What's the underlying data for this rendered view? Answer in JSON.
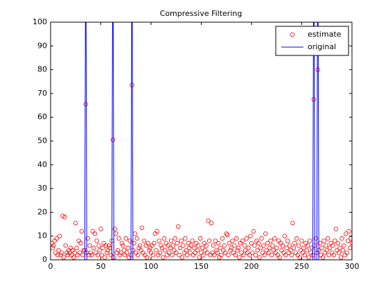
{
  "chart_data": {
    "type": "scatter-line",
    "title": "Compressive Filtering",
    "x": [
      1,
      2,
      3,
      4,
      5,
      6,
      7,
      8,
      9,
      10,
      11,
      12,
      13,
      14,
      15,
      16,
      17,
      18,
      19,
      20,
      21,
      22,
      23,
      24,
      25,
      26,
      27,
      28,
      29,
      30,
      31,
      32,
      33,
      34,
      35,
      36,
      37,
      38,
      39,
      40,
      41,
      42,
      43,
      44,
      45,
      46,
      47,
      48,
      49,
      50,
      51,
      52,
      53,
      54,
      55,
      56,
      57,
      58,
      59,
      60,
      61,
      62,
      63,
      64,
      65,
      66,
      67,
      68,
      69,
      70,
      71,
      72,
      73,
      74,
      75,
      76,
      77,
      78,
      79,
      80,
      81,
      82,
      83,
      84,
      85,
      86,
      87,
      88,
      89,
      90,
      91,
      92,
      93,
      94,
      95,
      96,
      97,
      98,
      99,
      100,
      101,
      102,
      103,
      104,
      105,
      106,
      107,
      108,
      109,
      110,
      111,
      112,
      113,
      114,
      115,
      116,
      117,
      118,
      119,
      120,
      121,
      122,
      123,
      124,
      125,
      126,
      127,
      128,
      129,
      130,
      131,
      132,
      133,
      134,
      135,
      136,
      137,
      138,
      139,
      140,
      141,
      142,
      143,
      144,
      145,
      146,
      147,
      148,
      149,
      150,
      151,
      152,
      153,
      154,
      155,
      156,
      157,
      158,
      159,
      160,
      161,
      162,
      163,
      164,
      165,
      166,
      167,
      168,
      169,
      170,
      171,
      172,
      173,
      174,
      175,
      176,
      177,
      178,
      179,
      180,
      181,
      182,
      183,
      184,
      185,
      186,
      187,
      188,
      189,
      190,
      191,
      192,
      193,
      194,
      195,
      196,
      197,
      198,
      199,
      200,
      201,
      202,
      203,
      204,
      205,
      206,
      207,
      208,
      209,
      210,
      211,
      212,
      213,
      214,
      215,
      216,
      217,
      218,
      219,
      220,
      221,
      222,
      223,
      224,
      225,
      226,
      227,
      228,
      229,
      230,
      231,
      232,
      233,
      234,
      235,
      236,
      237,
      238,
      239,
      240,
      241,
      242,
      243,
      244,
      245,
      246,
      247,
      248,
      249,
      250,
      251,
      252,
      253,
      254,
      255,
      256,
      257,
      258,
      259,
      260,
      261,
      262,
      263,
      264,
      265,
      266,
      267,
      268,
      269,
      270,
      271,
      272,
      273,
      274,
      275,
      276,
      277,
      278,
      279,
      280,
      281,
      282,
      283,
      284,
      285,
      286,
      287,
      288,
      289,
      290,
      291,
      292,
      293,
      294,
      295,
      296,
      297,
      298,
      299,
      300
    ],
    "series": [
      {
        "name": "estimate",
        "color": "#ff0000",
        "marker": "circle",
        "values": [
          7,
          5,
          6,
          8,
          3,
          9,
          2,
          4,
          10,
          2,
          3,
          18.5,
          1,
          18,
          6,
          3,
          2,
          4,
          3,
          5,
          2,
          4,
          1,
          3,
          15.5,
          5,
          2,
          8,
          3,
          7,
          12,
          2,
          4,
          4,
          65.5,
          3,
          9,
          2,
          6,
          3,
          2,
          12,
          5,
          11,
          3,
          8,
          2,
          6,
          4,
          13,
          2,
          5,
          7,
          1,
          6,
          3,
          4,
          6,
          5,
          2,
          8,
          50.5,
          1,
          13,
          11,
          3,
          4,
          9,
          2,
          3,
          7,
          6,
          4,
          2,
          9,
          3,
          5,
          1,
          8,
          2,
          73.5,
          4,
          7,
          11,
          3,
          9,
          2,
          5,
          6,
          4,
          13.5,
          3,
          8,
          2,
          6,
          1,
          7,
          4,
          5,
          3,
          6,
          2,
          7,
          11,
          4,
          12,
          2,
          8,
          3,
          6,
          5,
          1,
          9,
          4,
          7,
          2,
          6,
          3,
          5,
          8,
          2,
          6,
          4,
          9,
          3,
          7,
          14,
          2,
          5,
          8,
          1,
          6,
          3,
          9,
          4,
          2,
          7,
          5,
          3,
          6,
          8,
          2,
          5,
          3,
          7,
          4,
          6,
          1,
          9,
          3,
          5,
          2,
          7,
          4,
          6,
          3,
          16.5,
          8,
          2,
          15.5,
          3,
          6,
          2,
          8,
          4,
          3,
          7,
          1,
          5,
          2,
          9,
          4,
          6,
          3,
          11,
          10.5,
          2,
          7,
          4,
          5,
          8,
          3,
          6,
          2,
          9,
          4,
          5,
          1,
          7,
          3,
          8,
          2,
          6,
          4,
          9,
          3,
          5,
          2,
          10,
          7,
          3,
          12,
          6,
          2,
          8,
          4,
          7,
          1,
          5,
          9,
          3,
          6,
          2,
          11,
          4,
          7,
          3,
          5,
          8,
          2,
          6,
          4,
          9,
          3,
          5,
          2,
          8,
          1,
          7,
          4,
          6,
          3,
          10,
          2,
          5,
          8,
          3,
          6,
          4,
          2,
          15.5,
          5,
          7,
          3,
          9,
          2,
          6,
          1,
          4,
          8,
          3,
          5,
          2,
          7,
          4,
          6,
          1,
          8,
          3,
          5,
          2,
          67.5,
          6,
          9,
          3,
          80,
          4,
          7,
          2,
          5,
          1,
          8,
          3,
          6,
          4,
          9,
          2,
          5,
          7,
          3,
          6,
          2,
          8,
          13,
          4,
          7,
          3,
          5,
          1,
          9,
          4,
          6,
          2,
          11,
          3,
          8,
          12,
          5,
          9,
          7
        ]
      },
      {
        "name": "original",
        "color": "#0000ff",
        "marker": "line",
        "values": [
          0,
          0,
          0,
          0,
          0,
          0,
          0,
          0,
          0,
          0,
          0,
          0,
          0,
          0,
          0,
          0,
          0,
          0,
          0,
          0,
          0,
          0,
          0,
          0,
          0,
          0,
          0,
          0,
          0,
          0,
          0,
          0,
          0,
          0,
          150,
          0,
          0,
          0,
          0,
          0,
          0,
          0,
          0,
          0,
          0,
          0,
          0,
          0,
          0,
          0,
          0,
          0,
          0,
          0,
          0,
          0,
          0,
          0,
          0,
          0,
          0,
          150,
          0,
          0,
          0,
          0,
          0,
          0,
          0,
          0,
          0,
          0,
          0,
          0,
          0,
          0,
          0,
          0,
          0,
          0,
          150,
          0,
          0,
          0,
          0,
          0,
          0,
          0,
          0,
          0,
          0,
          0,
          0,
          0,
          0,
          0,
          0,
          0,
          0,
          0,
          0,
          0,
          0,
          0,
          0,
          0,
          0,
          0,
          0,
          0,
          0,
          0,
          0,
          0,
          0,
          0,
          0,
          0,
          0,
          0,
          0,
          0,
          0,
          0,
          0,
          0,
          0,
          0,
          0,
          0,
          0,
          0,
          0,
          0,
          0,
          0,
          0,
          0,
          0,
          0,
          0,
          0,
          0,
          0,
          0,
          0,
          0,
          0,
          0,
          0,
          0,
          0,
          0,
          0,
          0,
          0,
          0,
          0,
          0,
          0,
          0,
          0,
          0,
          0,
          0,
          0,
          0,
          0,
          0,
          0,
          0,
          0,
          0,
          0,
          0,
          0,
          0,
          0,
          0,
          0,
          0,
          0,
          0,
          0,
          0,
          0,
          0,
          0,
          0,
          0,
          0,
          0,
          0,
          0,
          0,
          0,
          0,
          0,
          0,
          0,
          0,
          0,
          0,
          0,
          0,
          0,
          0,
          0,
          0,
          0,
          0,
          0,
          0,
          0,
          0,
          0,
          0,
          0,
          0,
          0,
          0,
          0,
          0,
          0,
          0,
          0,
          0,
          0,
          0,
          0,
          0,
          0,
          0,
          0,
          0,
          0,
          0,
          0,
          0,
          0,
          0,
          0,
          0,
          0,
          0,
          0,
          0,
          0,
          0,
          0,
          0,
          0,
          0,
          0,
          0,
          0,
          0,
          0,
          0,
          0,
          0,
          150,
          0,
          0,
          0,
          150,
          0,
          0,
          0,
          0,
          0,
          0,
          0,
          0,
          0,
          0,
          0,
          0,
          0,
          0,
          0,
          0,
          0,
          0,
          0,
          0,
          0,
          0,
          0,
          0,
          0,
          0,
          0,
          0,
          0,
          0,
          0,
          0,
          0,
          0
        ]
      }
    ],
    "xlim": [
      0,
      300
    ],
    "xticks": [
      0,
      50,
      100,
      150,
      200,
      250,
      300
    ],
    "ylim": [
      0,
      100
    ],
    "yticks": [
      0,
      10,
      20,
      30,
      40,
      50,
      60,
      70,
      80,
      90,
      100
    ],
    "grid": false,
    "legend": "upper right"
  }
}
